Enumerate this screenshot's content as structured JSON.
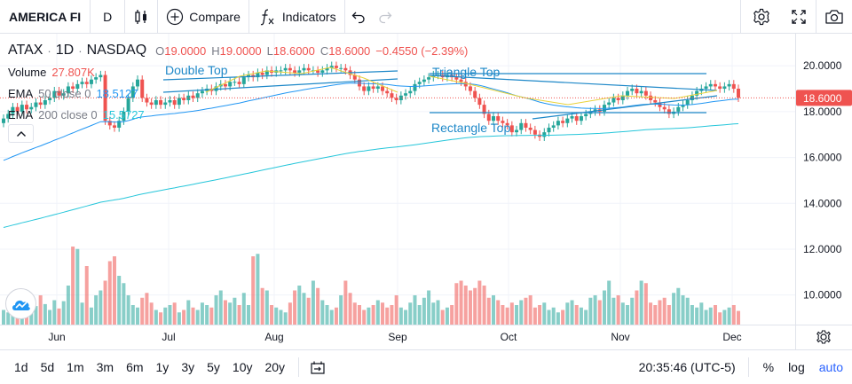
{
  "toolbar": {
    "symbol": "AMERICA FI",
    "interval": "D",
    "compare_label": "Compare",
    "indicators_label": "Indicators"
  },
  "legend": {
    "ticker": "ATAX",
    "interval": "1D",
    "exchange": "NASDAQ",
    "open_label": "O",
    "open": "19.0000",
    "high_label": "H",
    "high": "19.0000",
    "low_label": "L",
    "low": "18.6000",
    "close_label": "C",
    "close": "18.6000",
    "change": "−0.4550 (−2.39%)",
    "volume_name": "Volume",
    "volume_value": "27.807K",
    "ema50_name": "EMA",
    "ema50_params": "50 close 0",
    "ema50_value": "18.5127",
    "ema200_name": "EMA",
    "ema200_params": "200 close 0",
    "ema200_value": "15.5727"
  },
  "colors": {
    "up": "#26a69a",
    "down": "#ef5350",
    "ema50": "#2196f3",
    "ema200": "#26c6da",
    "pattern": "#1e88c8",
    "pattern_zig": "#e8d23a",
    "accent": "#2962ff",
    "grid": "#f0f3fa"
  },
  "chart_data": {
    "type": "candlestick",
    "last_price_label": "18.6000",
    "last_price": 18.6,
    "y_ticks": [
      "20.0000",
      "18.0000",
      "16.0000",
      "14.0000",
      "12.0000",
      "10.0000"
    ],
    "ylim": [
      8.4,
      21.4
    ],
    "x_ticks": [
      "Jun",
      "Jul",
      "Aug",
      "Sep",
      "Oct",
      "Nov",
      "Dec"
    ],
    "annotations": [
      "Double Top",
      "Triangle Top",
      "Rectangle Top"
    ],
    "closes": [
      17.7,
      17.9,
      18.2,
      18.0,
      18.3,
      18.1,
      18.2,
      18.4,
      18.3,
      18.5,
      18.6,
      18.9,
      18.7,
      18.8,
      19.1,
      19.0,
      19.2,
      19.3,
      19.2,
      19.4,
      19.5,
      19.6,
      17.6,
      17.4,
      17.3,
      17.6,
      18.0,
      18.6,
      19.1,
      19.4,
      18.6,
      18.4,
      18.3,
      18.5,
      18.3,
      18.4,
      18.5,
      18.3,
      18.6,
      18.5,
      18.7,
      18.6,
      18.8,
      18.9,
      19.0,
      18.9,
      19.1,
      19.2,
      19.1,
      19.3,
      19.3,
      19.2,
      19.5,
      19.6,
      19.5,
      19.7,
      19.6,
      19.8,
      19.7,
      19.8,
      19.8,
      19.9,
      19.8,
      19.7,
      19.8,
      19.9,
      19.8,
      19.8,
      19.7,
      19.8,
      19.9,
      20.0,
      19.9,
      19.9,
      19.8,
      19.6,
      19.4,
      19.1,
      18.9,
      19.1,
      19.0,
      19.1,
      18.9,
      18.8,
      18.6,
      18.5,
      18.7,
      18.8,
      18.9,
      19.2,
      19.3,
      19.4,
      19.5,
      19.6,
      19.6,
      19.5,
      19.6,
      19.5,
      19.4,
      19.3,
      19.1,
      18.9,
      18.6,
      18.3,
      17.9,
      17.6,
      17.8,
      17.6,
      17.5,
      17.4,
      17.1,
      17.2,
      17.5,
      17.3,
      17.2,
      17.0,
      16.9,
      17.1,
      17.3,
      17.4,
      17.6,
      17.5,
      17.7,
      17.8,
      17.6,
      17.8,
      17.9,
      18.0,
      18.1,
      18.0,
      18.3,
      18.4,
      18.6,
      18.5,
      18.7,
      18.9,
      19.0,
      18.8,
      18.9,
      18.7,
      18.5,
      18.4,
      18.2,
      18.1,
      17.9,
      18.0,
      18.2,
      18.3,
      18.5,
      18.7,
      18.9,
      19.0,
      19.1,
      19.2,
      19.1,
      19.0,
      19.1,
      19.2,
      19.0,
      18.6
    ],
    "volume_k": [
      30,
      25,
      40,
      35,
      20,
      45,
      55,
      38,
      60,
      42,
      30,
      50,
      33,
      48,
      80,
      160,
      155,
      45,
      120,
      35,
      60,
      70,
      90,
      130,
      140,
      100,
      85,
      60,
      40,
      35,
      55,
      65,
      45,
      30,
      25,
      35,
      40,
      45,
      25,
      30,
      50,
      35,
      30,
      45,
      40,
      35,
      60,
      70,
      50,
      45,
      55,
      40,
      65,
      40,
      140,
      145,
      75,
      70,
      40,
      35,
      30,
      25,
      45,
      70,
      80,
      65,
      55,
      90,
      75,
      50,
      40,
      30,
      35,
      60,
      90,
      65,
      45,
      40,
      30,
      35,
      40,
      50,
      45,
      35,
      40,
      60,
      35,
      30,
      45,
      60,
      40,
      55,
      70,
      45,
      50,
      30,
      35,
      40,
      85,
      90,
      80,
      70,
      75,
      90,
      80,
      55,
      60,
      50,
      40,
      35,
      45,
      40,
      50,
      55,
      60,
      35,
      40,
      45,
      30,
      35,
      25,
      30,
      45,
      50,
      40,
      35,
      30,
      55,
      60,
      50,
      70,
      90,
      55,
      60,
      45,
      40,
      55,
      70,
      90,
      85,
      45,
      40,
      50,
      55,
      40,
      65,
      75,
      60,
      55,
      40,
      35,
      45,
      30,
      35,
      40,
      25,
      30,
      35,
      40,
      28
    ]
  },
  "bottombar": {
    "ranges": [
      "1d",
      "5d",
      "1m",
      "3m",
      "6m",
      "1y",
      "3y",
      "5y",
      "10y",
      "20y"
    ],
    "clock": "20:35:46 (UTC-5)",
    "percent": "%",
    "log": "log",
    "auto": "auto"
  }
}
